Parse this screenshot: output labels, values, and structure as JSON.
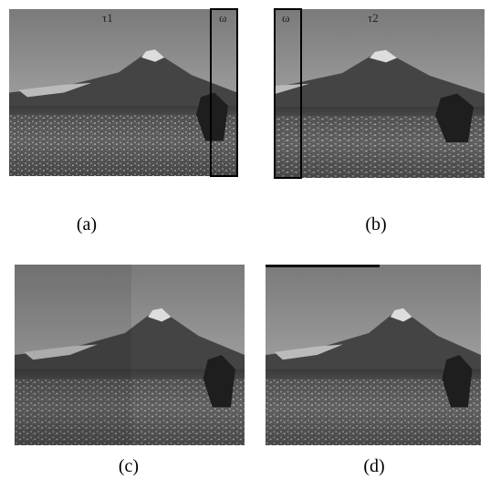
{
  "panels": [
    {
      "label": "(a)",
      "annotations": [
        "τ1",
        "ω"
      ]
    },
    {
      "label": "(b)",
      "annotations": [
        "ω",
        "τ2"
      ]
    },
    {
      "label": "(c)",
      "annotations": []
    },
    {
      "label": "(d)",
      "annotations": []
    }
  ]
}
